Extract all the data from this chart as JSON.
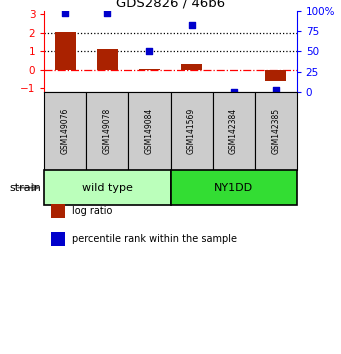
{
  "title": "GDS2826 / 46b6",
  "samples": [
    "GSM149076",
    "GSM149078",
    "GSM149084",
    "GSM141569",
    "GSM142384",
    "GSM142385"
  ],
  "log_ratio": [
    2.03,
    1.12,
    0.04,
    0.32,
    0.0,
    -0.62
  ],
  "percentile_rank": [
    97,
    97,
    51,
    82,
    0,
    2
  ],
  "groups": [
    {
      "label": "wild type",
      "indices": [
        0,
        1,
        2
      ],
      "color": "#bbffbb"
    },
    {
      "label": "NY1DD",
      "indices": [
        3,
        4,
        5
      ],
      "color": "#33dd33"
    }
  ],
  "bar_color": "#aa2200",
  "dot_color": "#0000cc",
  "ylim_left": [
    -1.2,
    3.2
  ],
  "ylim_right": [
    0,
    100
  ],
  "yticks_left": [
    -1,
    0,
    1,
    2,
    3
  ],
  "yticks_right": [
    0,
    25,
    50,
    75,
    100
  ],
  "ytick_right_labels": [
    "0",
    "25",
    "50",
    "75",
    "100 %"
  ],
  "hlines_dotted": [
    1,
    2
  ],
  "hline_dashdot": 0,
  "background_color": "#ffffff",
  "strain_label": "strain",
  "sample_box_color": "#cccccc",
  "legend_items": [
    {
      "color": "#aa2200",
      "label": "log ratio"
    },
    {
      "color": "#0000cc",
      "label": "percentile rank within the sample"
    }
  ]
}
